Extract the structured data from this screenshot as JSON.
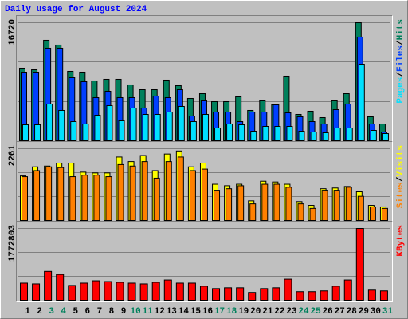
{
  "chart_data": [
    {
      "type": "bar",
      "title": "Daily usage for August 2024",
      "title_color": "#0000ff",
      "legend_separator": "/",
      "ylim": [
        0,
        16720
      ],
      "yticks": [
        16720
      ],
      "series": [
        {
          "name": "Hits",
          "color": "#00805c",
          "values": [
            10283,
            10057,
            14238,
            13560,
            9831,
            9718,
            8475,
            8701,
            8701,
            7910,
            7232,
            7232,
            8588,
            7797,
            5989,
            6667,
            5537,
            5537,
            6215,
            4294,
            5650,
            5085,
            9153,
            3729,
            4181,
            3277,
            5650,
            6667,
            16720,
            3390,
            2373
          ]
        },
        {
          "name": "Files",
          "color": "#0040ff",
          "values": [
            9718,
            9718,
            13108,
            13108,
            8927,
            8362,
            6102,
            7006,
            6102,
            6102,
            4633,
            6328,
            6102,
            7232,
            3503,
            5650,
            4068,
            4068,
            2712,
            4068,
            4068,
            5085,
            3955,
            3390,
            2712,
            2373,
            4407,
            5198,
            14690,
            2373,
            1243
          ]
        },
        {
          "name": "Pages",
          "color": "#00e0ff",
          "values": [
            2260,
            2260,
            5198,
            4294,
            2712,
            2373,
            3616,
            4972,
            2825,
            4633,
            3729,
            3729,
            4068,
            4859,
            2712,
            3729,
            1808,
            2373,
            2260,
            1356,
            2034,
            2034,
            2034,
            1356,
            1243,
            1130,
            1808,
            1808,
            10848,
            1469,
            1017
          ]
        }
      ]
    },
    {
      "type": "bar",
      "legend_separator": "/",
      "ylim": [
        0,
        2261
      ],
      "yticks": [
        2261
      ],
      "series": [
        {
          "name": "Visits",
          "color": "#ffff00",
          "values": [
            1404,
            1690,
            1714,
            1809,
            1809,
            1523,
            1499,
            1499,
            1999,
            1856,
            2047,
            1571,
            2094,
            2190,
            1690,
            1809,
            1142,
            1095,
            1142,
            619,
            1238,
            1214,
            1142,
            595,
            476,
            1000,
            1023,
            1071,
            904,
            476,
            428
          ]
        },
        {
          "name": "Sites",
          "color": "#ff8000",
          "values": [
            1380,
            1571,
            1690,
            1666,
            1380,
            1428,
            1428,
            1380,
            1761,
            1714,
            1856,
            1333,
            1856,
            1999,
            1571,
            1618,
            952,
            1000,
            1095,
            524,
            1142,
            1142,
            1047,
            524,
            381,
            952,
            952,
            1047,
            762,
            428,
            381
          ]
        }
      ]
    },
    {
      "type": "bar",
      "ylim": [
        0,
        1772803
      ],
      "yticks": [
        1772803
      ],
      "series": [
        {
          "name": "KBytes",
          "color": "#ff0000",
          "values": [
            423940,
            404670,
            712990,
            635910,
            366130,
            423940,
            481750,
            462480,
            443210,
            423940,
            404670,
            443210,
            501020,
            423940,
            423940,
            346860,
            289050,
            308320,
            308320,
            192700,
            289050,
            308320,
            520290,
            211970,
            211970,
            231240,
            346860,
            501020,
            1772803,
            250510,
            231240
          ]
        }
      ],
      "categories": [
        "1",
        "2",
        "3",
        "4",
        "5",
        "6",
        "7",
        "8",
        "9",
        "10",
        "11",
        "12",
        "13",
        "14",
        "15",
        "16",
        "17",
        "18",
        "19",
        "20",
        "21",
        "22",
        "23",
        "24",
        "25",
        "26",
        "27",
        "28",
        "29",
        "30",
        "31"
      ],
      "category_colors": [
        "#000000",
        "#000000",
        "#00805c",
        "#00805c",
        "#000000",
        "#000000",
        "#000000",
        "#000000",
        "#000000",
        "#00805c",
        "#00805c",
        "#000000",
        "#000000",
        "#000000",
        "#000000",
        "#000000",
        "#00805c",
        "#00805c",
        "#000000",
        "#000000",
        "#000000",
        "#000000",
        "#000000",
        "#00805c",
        "#00805c",
        "#000000",
        "#000000",
        "#000000",
        "#000000",
        "#000000",
        "#00805c"
      ]
    }
  ]
}
